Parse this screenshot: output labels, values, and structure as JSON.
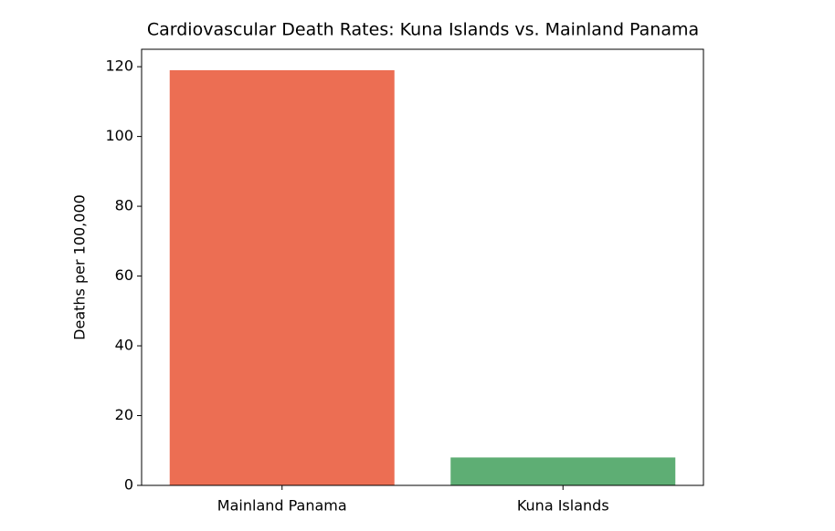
{
  "chart_data": {
    "type": "bar",
    "title": "Cardiovascular Death Rates: Kuna Islands vs. Mainland Panama",
    "y_label": "Deaths per 100,000",
    "categories": [
      "Mainland Panama",
      "Kuna Islands"
    ],
    "values": [
      119,
      8
    ],
    "colors": [
      "#ec6e53",
      "#5eae74"
    ],
    "ylim": [
      0,
      125
    ],
    "yticks": [
      0,
      20,
      40,
      60,
      80,
      100,
      120
    ]
  }
}
